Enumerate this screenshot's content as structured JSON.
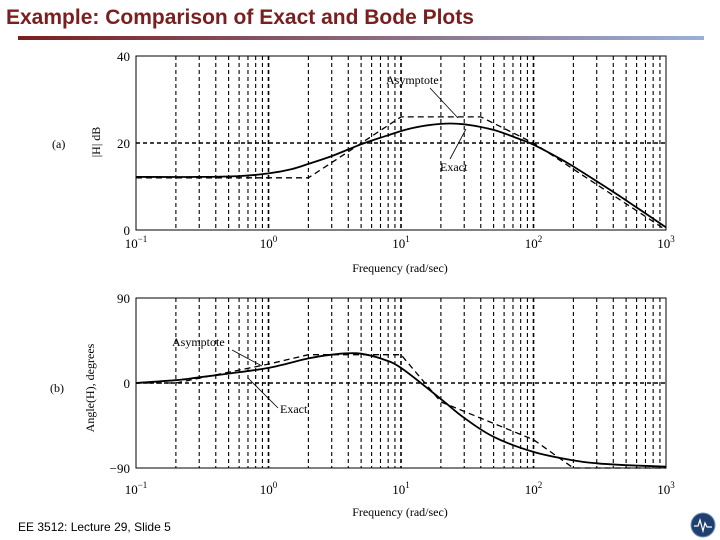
{
  "slide": {
    "title": "Example: Comparison of Exact and Bode Plots",
    "footer": "EE 3512: Lecture 29, Slide 5",
    "title_color": "#7a1f1f"
  },
  "chart_data": [
    {
      "type": "line",
      "panel_label": "(a)",
      "xlabel": "Frequency (rad/sec)",
      "ylabel": "|H| dB",
      "x_scale": "log",
      "xlim": [
        0.1,
        1000
      ],
      "ylim": [
        0,
        40
      ],
      "x_tick_labels": [
        "10",
        "10",
        "10",
        "10",
        "10"
      ],
      "x_tick_exponents": [
        "-1",
        "0",
        "1",
        "2",
        "3"
      ],
      "y_ticks": [
        "0",
        "20",
        "40"
      ],
      "grid": true,
      "series": [
        {
          "name": "Exact",
          "x": [
            0.1,
            0.3,
            0.6,
            1,
            1.5,
            2,
            3,
            5,
            8,
            12,
            20,
            30,
            50,
            80,
            100,
            150,
            200,
            300,
            500,
            1000
          ],
          "y": [
            12.2,
            12.2,
            12.4,
            13,
            14,
            15.2,
            17,
            19.7,
            21.8,
            23.4,
            24.4,
            24.3,
            23,
            20.8,
            19.6,
            16.8,
            14.6,
            11.2,
            6.8,
            0.6
          ]
        },
        {
          "name": "Asymptote",
          "x": [
            0.1,
            2,
            3,
            10,
            40,
            100,
            1000
          ],
          "y": [
            12,
            12,
            15.5,
            26,
            26,
            20,
            0
          ]
        }
      ],
      "annotations": [
        "Asymptote",
        "Exact"
      ]
    },
    {
      "type": "line",
      "panel_label": "(b)",
      "xlabel": "Frequency (rad/sec)",
      "ylabel": "Angle(H), degrees",
      "x_scale": "log",
      "xlim": [
        0.1,
        1000
      ],
      "ylim": [
        -90,
        90
      ],
      "x_tick_labels": [
        "10",
        "10",
        "10",
        "10",
        "10"
      ],
      "x_tick_exponents": [
        "-1",
        "0",
        "1",
        "2",
        "3"
      ],
      "y_ticks": [
        "-90",
        "0",
        "90"
      ],
      "grid": true,
      "series": [
        {
          "name": "Exact",
          "x": [
            0.1,
            0.2,
            0.3,
            0.5,
            1,
            2,
            3,
            4,
            5,
            7,
            10,
            20,
            30,
            50,
            100,
            200,
            300,
            500,
            1000
          ],
          "y": [
            0,
            3,
            6,
            10,
            16,
            26,
            30,
            31.5,
            31,
            26,
            16,
            -17,
            -37,
            -57,
            -73,
            -82,
            -85,
            -87,
            -88.5
          ]
        },
        {
          "name": "Asymptote",
          "x": [
            0.1,
            0.2,
            1,
            2,
            10,
            20,
            100,
            200,
            1000
          ],
          "y": [
            0,
            0,
            20,
            30,
            30,
            -20,
            -60,
            -90,
            -90
          ]
        }
      ],
      "annotations": [
        "Asymptote",
        "Exact"
      ]
    }
  ]
}
